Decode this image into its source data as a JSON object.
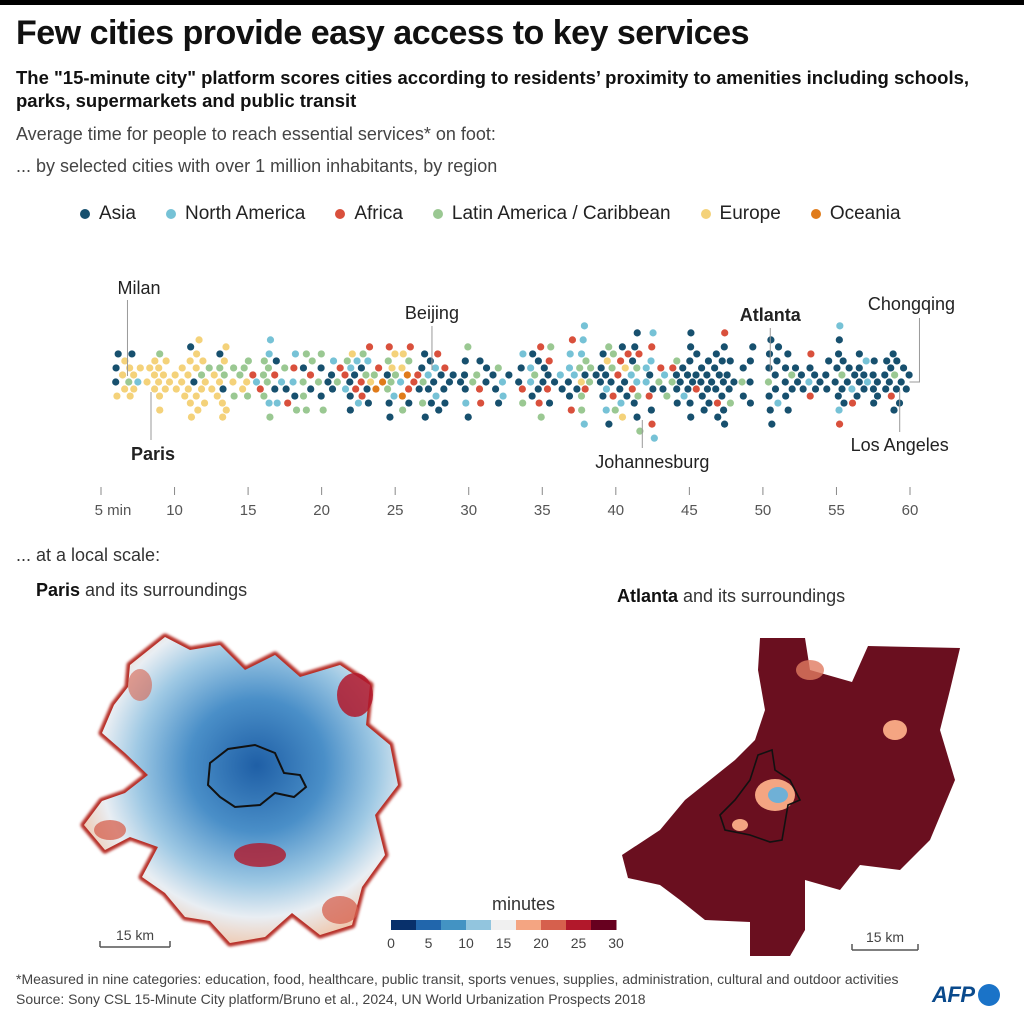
{
  "title": "Few cities provide easy access to key services",
  "subtitle": "The \"15-minute city\" platform scores cities according to residents’ proximity to amenities including schools, parks, supermarkets and public transit",
  "description_1": "Average time for people to reach essential services* on foot:",
  "description_2": "... by selected cities with over 1 million inhabitants, by region",
  "legend": [
    {
      "label": "Asia",
      "color": "#17506e"
    },
    {
      "label": "North America",
      "color": "#76c2d6"
    },
    {
      "label": "Africa",
      "color": "#d9503c"
    },
    {
      "label": "Latin America / Caribbean",
      "color": "#9ac892"
    },
    {
      "label": "Europe",
      "color": "#f4d27a"
    },
    {
      "label": "Oceania",
      "color": "#e07b1a"
    }
  ],
  "chart_data": {
    "type": "scatter",
    "xlim": [
      5,
      60
    ],
    "ticks": [
      5,
      10,
      15,
      20,
      25,
      30,
      35,
      40,
      45,
      50,
      55,
      60
    ],
    "tick_labels": [
      "5 min",
      "10",
      "15",
      "20",
      "25",
      "30",
      "35",
      "40",
      "45",
      "50",
      "55",
      "60"
    ],
    "region_weights": [
      {
        "start": 6,
        "end": 14,
        "weights": {
          "Europe": 0.78,
          "Latin America / Caribbean": 0.12,
          "Asia": 0.06,
          "North America": 0.04
        }
      },
      {
        "start": 14,
        "end": 26,
        "weights": {
          "Latin America / Caribbean": 0.34,
          "Asia": 0.26,
          "North America": 0.14,
          "Europe": 0.1,
          "Africa": 0.12,
          "Oceania": 0.04
        }
      },
      {
        "start": 26,
        "end": 45,
        "weights": {
          "Asia": 0.42,
          "Latin America / Caribbean": 0.2,
          "North America": 0.16,
          "Africa": 0.18,
          "Europe": 0.04
        }
      },
      {
        "start": 45,
        "end": 60,
        "weights": {
          "Asia": 0.76,
          "North America": 0.1,
          "Africa": 0.1,
          "Latin America / Caribbean": 0.04
        }
      }
    ],
    "annotations": [
      {
        "label": "Milan",
        "x": 6.8,
        "bold": false
      },
      {
        "label": "Paris",
        "x": 8.4,
        "bold": true
      },
      {
        "label": "Beijing",
        "x": 27.5,
        "bold": false
      },
      {
        "label": "Johannesburg",
        "x": 41.8,
        "bold": false
      },
      {
        "label": "Atlanta",
        "x": 50.5,
        "bold": true
      },
      {
        "label": "Chongqing",
        "x": 60.1,
        "bold": false
      },
      {
        "label": "Los Angeles",
        "x": 59.3,
        "bold": false
      }
    ]
  },
  "local_scale_label": "...  at a local scale:",
  "paris_label": {
    "bold": "Paris",
    "rest": " and its surroundings"
  },
  "atlanta_label": {
    "bold": "Atlanta",
    "rest": " and its surroundings"
  },
  "scale_bar_paris": "15 km",
  "scale_bar_atlanta": "15 km",
  "colorbar": {
    "title": "minutes",
    "ticks": [
      "0",
      "5",
      "10",
      "15",
      "20",
      "25",
      "30"
    ],
    "colors": [
      "#08306b",
      "#2166ac",
      "#4393c3",
      "#92c5de",
      "#f0f0f0",
      "#f4a582",
      "#d6604d",
      "#b2182b",
      "#67001f"
    ]
  },
  "footnote_1": "*Measured in nine categories: education, food, healthcare, public transit, sports venues, supplies, administration, cultural and outdoor activities",
  "footnote_2": "Source: Sony CSL 15-Minute City platform/Bruno et al., 2024, UN World Urbanization Prospects 2018",
  "logo_text": "AFP"
}
